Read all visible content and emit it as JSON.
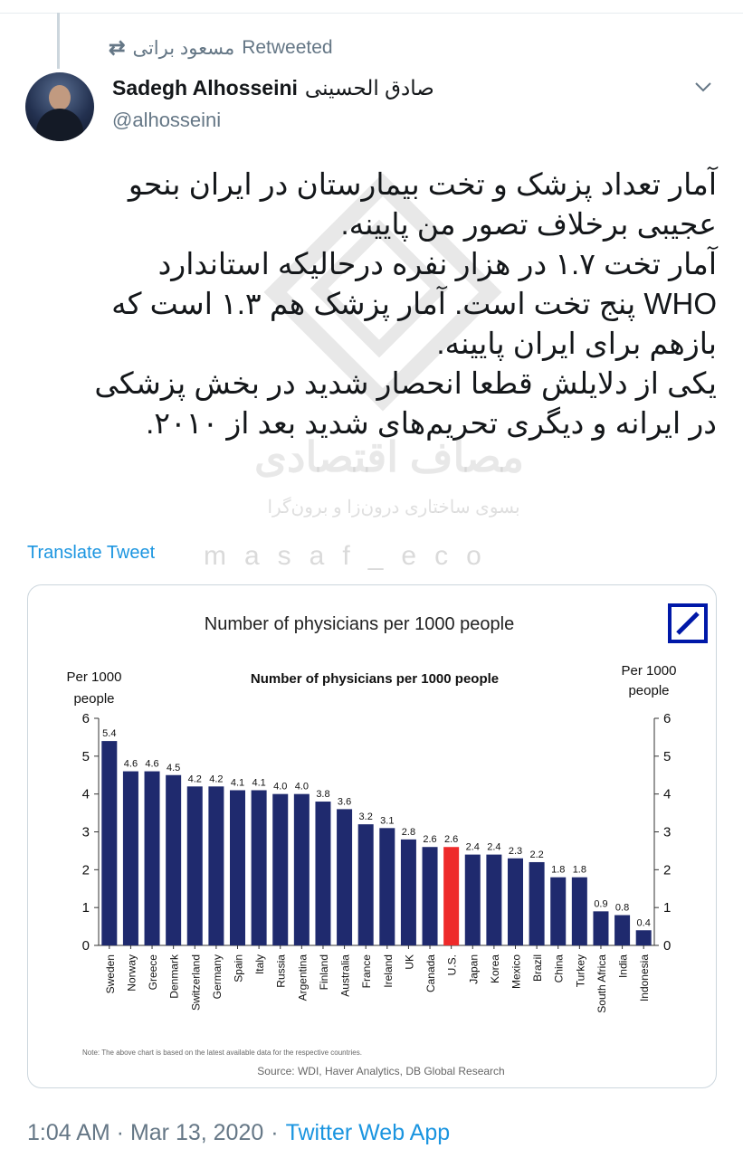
{
  "retweet": {
    "icon": "retweet-icon",
    "user": "مسعود براتی",
    "label": "Retweeted"
  },
  "author": {
    "name": "Sadegh Alhosseini",
    "name_ar": "صادق الحسینی",
    "handle": "@alhosseini",
    "avatar": "profile-photo"
  },
  "menu_icon": "chevron-down-icon",
  "tweet_lines": [
    "آمار تعداد پزشک و تخت بیمارستان در ایران بنحو",
    "عجیبی برخلاف تصور من پایینه.",
    "آمار تخت ۱.۷ در هزار نفره درحالیکه استاندارد",
    "WHO پنج تخت است. آمار پزشک هم ۱.۳ است که",
    "بازهم برای ایران پایینه.",
    "یکی از دلایلش قطعا انحصار شدید در بخش پزشکی",
    "در ایرانه و دیگری تحریم‌های شدید بعد از ۲۰۱۰."
  ],
  "watermark": {
    "title": "مصاف اقتصادی",
    "subtitle": "بسوی ساختاری درون‌زا و برون‌گرا",
    "handle": "masaf_eco"
  },
  "translate_label": "Translate Tweet",
  "timestamp": "1:04 AM · Mar 13, 2020",
  "separator": "·",
  "app": "Twitter Web App",
  "colors": {
    "bar": "#1f2a6e",
    "highlight": "#ee2a2a",
    "link": "#1b95e0",
    "muted": "#657786",
    "logo": "#0018a8"
  },
  "chart_data": {
    "type": "bar",
    "outer_title": "Number of physicians per 1000 people",
    "title": "Number of physicians per 1000 people",
    "ylabel_left": [
      "Per 1000",
      "people"
    ],
    "ylabel_right": [
      "Per 1000",
      "people"
    ],
    "ylim": [
      0,
      6
    ],
    "yticks": [
      0,
      1,
      2,
      3,
      4,
      5,
      6
    ],
    "categories": [
      "Sweden",
      "Norway",
      "Greece",
      "Denmark",
      "Switzerland",
      "Germany",
      "Spain",
      "Italy",
      "Russia",
      "Argentina",
      "Finland",
      "Australia",
      "France",
      "Ireland",
      "UK",
      "Canada",
      "U.S.",
      "Japan",
      "Korea",
      "Mexico",
      "Brazil",
      "China",
      "Turkey",
      "South Africa",
      "India",
      "Indonesia"
    ],
    "values": [
      5.4,
      4.6,
      4.6,
      4.5,
      4.2,
      4.2,
      4.1,
      4.1,
      4.0,
      4.0,
      3.8,
      3.6,
      3.2,
      3.1,
      2.8,
      2.6,
      2.6,
      2.4,
      2.4,
      2.3,
      2.2,
      1.8,
      1.8,
      0.9,
      0.8,
      0.4
    ],
    "value_labels": [
      "5.4",
      "4.6",
      "4.6",
      "4.5",
      "4.2",
      "4.2",
      "4.1",
      "4.1",
      "4.0",
      "4.0",
      "3.8",
      "3.6",
      "3.2",
      "3.1",
      "2.8",
      "2.6",
      "2.6",
      "2.4",
      "2.4",
      "2.3",
      "2.2",
      "1.8",
      "1.8",
      "0.9",
      "0.8",
      "0.4"
    ],
    "highlight": "U.S.",
    "note": "Note: The above chart is based on the latest available data for the respective countries.",
    "source": "Source: WDI, Haver Analytics, DB Global Research",
    "logo": "deutsche-bank-logo"
  }
}
